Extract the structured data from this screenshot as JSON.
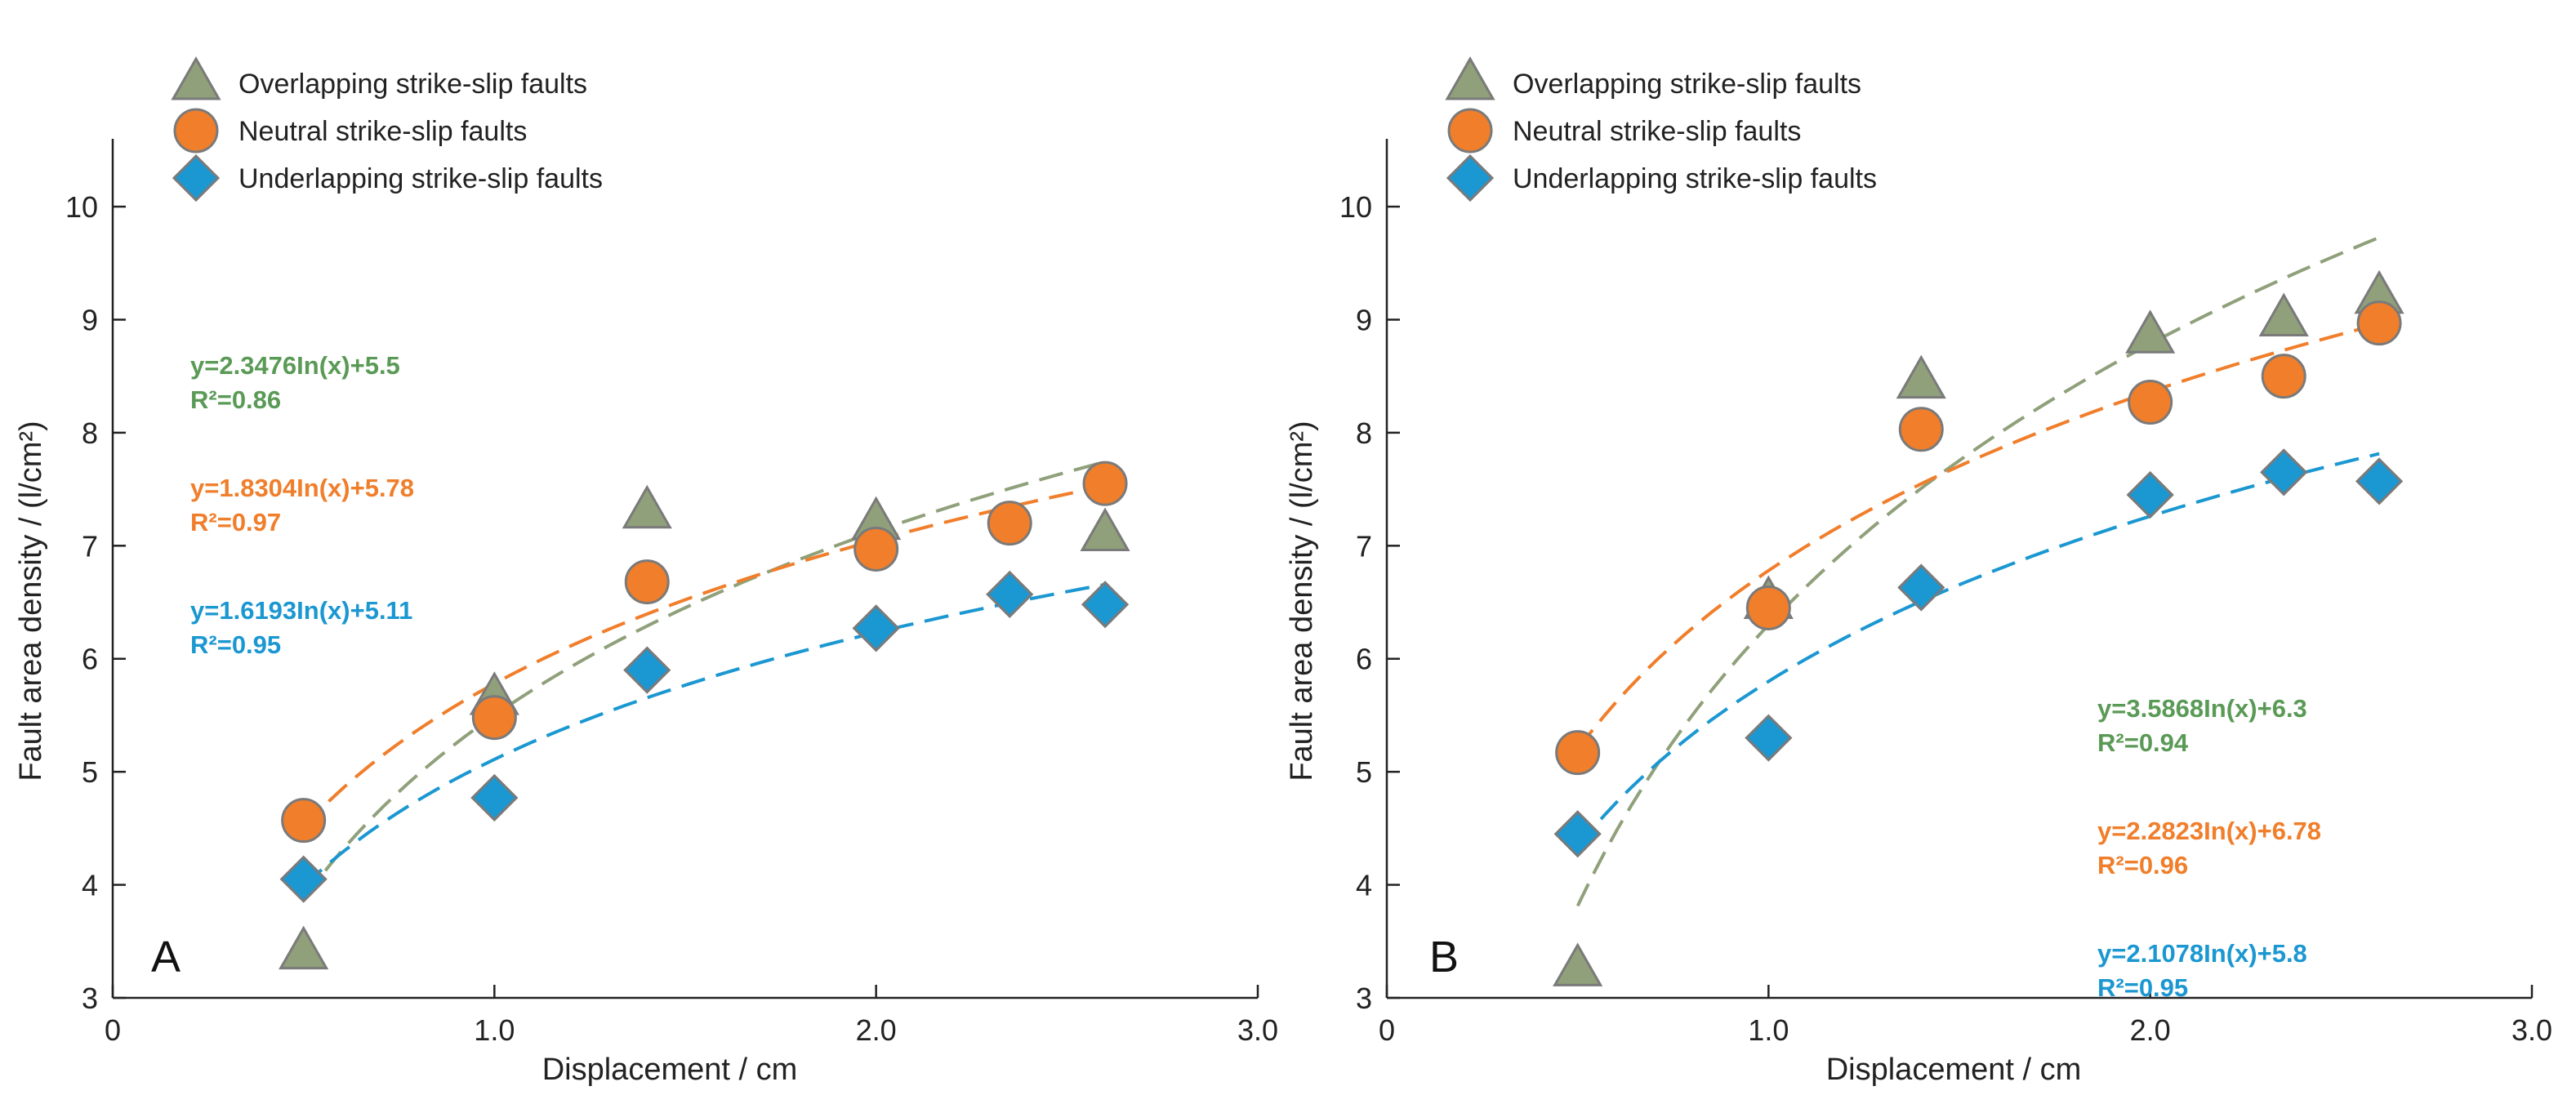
{
  "colors": {
    "overlapping": "#8fa07a",
    "neutral": "#f07e2b",
    "underlapping": "#1b97d1",
    "overlapping_text": "#5a9a56",
    "neutral_text": "#f07e2b",
    "underlapping_text": "#1b97d1",
    "marker_edge": "#7a7a7a",
    "axis": "#222222"
  },
  "chart_data": [
    {
      "type": "scatter",
      "panel_label": "A",
      "xlabel": "Displacement / cm",
      "ylabel": "Fault area density / (l/cm²)",
      "xlim": [
        0,
        3.0
      ],
      "ylim": [
        3,
        10.6
      ],
      "x_ticks": [
        0,
        1.0,
        2.0,
        3.0
      ],
      "x_tick_labels": [
        "0",
        "1.0",
        "2.0",
        "3.0"
      ],
      "y_ticks": [
        3,
        4,
        5,
        6,
        7,
        8,
        9,
        10
      ],
      "y_tick_labels": [
        "3",
        "4",
        "5",
        "6",
        "7",
        "8",
        "9",
        "10"
      ],
      "legend": [
        "Overlapping strike-slip faults",
        "Neutral strike-slip faults",
        "Underlapping strike-slip faults"
      ],
      "series": [
        {
          "name": "Overlapping strike-slip faults",
          "key": "overlapping",
          "marker": "triangle",
          "x": [
            0.5,
            1.0,
            1.4,
            2.0,
            2.6
          ],
          "y": [
            3.4,
            5.65,
            7.3,
            7.2,
            7.1
          ],
          "fit": {
            "a": 2.3476,
            "b": 5.5,
            "x_range": [
              0.5,
              2.6
            ]
          }
        },
        {
          "name": "Neutral strike-slip faults",
          "key": "neutral",
          "marker": "circle",
          "x": [
            0.5,
            1.0,
            1.4,
            2.0,
            2.35,
            2.6
          ],
          "y": [
            4.57,
            5.48,
            6.68,
            6.97,
            7.2,
            7.55
          ],
          "fit": {
            "a": 1.8304,
            "b": 5.78,
            "x_range": [
              0.5,
              2.6
            ]
          }
        },
        {
          "name": "Underlapping strike-slip faults",
          "key": "underlapping",
          "marker": "diamond",
          "x": [
            0.5,
            1.0,
            1.4,
            2.0,
            2.35,
            2.6
          ],
          "y": [
            4.05,
            4.77,
            5.9,
            6.27,
            6.57,
            6.48
          ],
          "fit": {
            "a": 1.6193,
            "b": 5.11,
            "x_range": [
              0.5,
              2.6
            ]
          }
        }
      ],
      "equations": [
        {
          "key": "overlapping",
          "equation": "y=2.3476In(x)+5.5",
          "r2": "R²=0.86"
        },
        {
          "key": "neutral",
          "equation": "y=1.8304In(x)+5.78",
          "r2": "R²=0.97"
        },
        {
          "key": "underlapping",
          "equation": "y=1.6193In(x)+5.11",
          "r2": "R²=0.95"
        }
      ]
    },
    {
      "type": "scatter",
      "panel_label": "B",
      "xlabel": "Displacement / cm",
      "ylabel": "Fault area density / (l/cm²)",
      "xlim": [
        0,
        3.0
      ],
      "ylim": [
        3,
        10.6
      ],
      "x_ticks": [
        0,
        1.0,
        2.0,
        3.0
      ],
      "x_tick_labels": [
        "0",
        "1.0",
        "2.0",
        "3.0"
      ],
      "y_ticks": [
        3,
        4,
        5,
        6,
        7,
        8,
        9,
        10
      ],
      "y_tick_labels": [
        "3",
        "4",
        "5",
        "6",
        "7",
        "8",
        "9",
        "10"
      ],
      "legend": [
        "Overlapping strike-slip faults",
        "Neutral strike-slip faults",
        "Underlapping strike-slip faults"
      ],
      "series": [
        {
          "name": "Overlapping strike-slip faults",
          "key": "overlapping",
          "marker": "triangle",
          "x": [
            0.5,
            1.0,
            1.4,
            2.0,
            2.35,
            2.6
          ],
          "y": [
            3.25,
            6.5,
            8.45,
            8.85,
            9.0,
            9.2
          ],
          "fit": {
            "a": 3.5868,
            "b": 6.3,
            "x_range": [
              0.5,
              2.6
            ]
          }
        },
        {
          "name": "Neutral strike-slip faults",
          "key": "neutral",
          "marker": "circle",
          "x": [
            0.5,
            1.0,
            1.4,
            2.0,
            2.35,
            2.6
          ],
          "y": [
            5.17,
            6.45,
            8.03,
            8.27,
            8.5,
            8.97
          ],
          "fit": {
            "a": 2.2823,
            "b": 6.78,
            "x_range": [
              0.5,
              2.6
            ]
          }
        },
        {
          "name": "Underlapping strike-slip faults",
          "key": "underlapping",
          "marker": "diamond",
          "x": [
            0.5,
            1.0,
            1.4,
            2.0,
            2.35,
            2.6
          ],
          "y": [
            4.45,
            5.3,
            6.63,
            7.45,
            7.65,
            7.57
          ],
          "fit": {
            "a": 2.1078,
            "b": 5.8,
            "x_range": [
              0.5,
              2.6
            ]
          }
        }
      ],
      "equations": [
        {
          "key": "overlapping",
          "equation": "y=3.5868In(x)+6.3",
          "r2": "R²=0.94"
        },
        {
          "key": "neutral",
          "equation": "y=2.2823In(x)+6.78",
          "r2": "R²=0.96"
        },
        {
          "key": "underlapping",
          "equation": "y=2.1078In(x)+5.8",
          "r2": "R²=0.95"
        }
      ]
    }
  ]
}
